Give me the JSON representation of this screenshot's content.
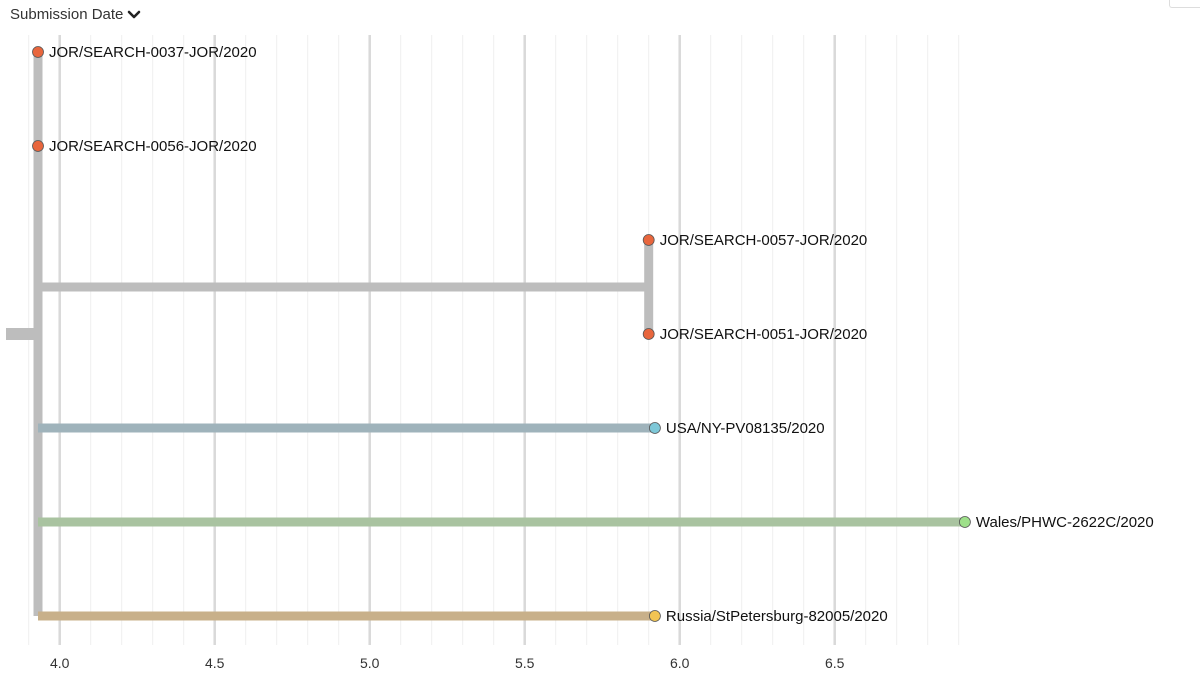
{
  "header": {
    "sort_label": "Submission Date",
    "sort_icon": "chevron-down-icon"
  },
  "chart_data": {
    "type": "phylogenetic-tree",
    "x_axis": {
      "ticks": [
        "4.0",
        "4.5",
        "5.0",
        "5.5",
        "6.0",
        "6.5"
      ],
      "range": [
        3.93,
        6.93
      ],
      "grid": true
    },
    "colors": {
      "branch": "#bdbdbd",
      "grid_major": "#d9d9d9",
      "grid_minor": "#eeeeee"
    },
    "root": {
      "x": 3.93
    },
    "internal_nodes": [
      {
        "id": "jor-clade",
        "x": 5.9,
        "children": [
          "JOR/SEARCH-0057-JOR/2020",
          "JOR/SEARCH-0051-JOR/2020"
        ]
      }
    ],
    "tips": [
      {
        "label": "JOR/SEARCH-0037-JOR/2020",
        "x": 3.93,
        "parent": "root",
        "branch_color": "#bdbdbd",
        "dot_color": "#e8663d"
      },
      {
        "label": "JOR/SEARCH-0056-JOR/2020",
        "x": 3.93,
        "parent": "root",
        "branch_color": "#bdbdbd",
        "dot_color": "#e8663d"
      },
      {
        "label": "JOR/SEARCH-0057-JOR/2020",
        "x": 5.9,
        "parent": "jor-clade",
        "branch_color": "#bdbdbd",
        "dot_color": "#e8663d"
      },
      {
        "label": "JOR/SEARCH-0051-JOR/2020",
        "x": 5.9,
        "parent": "jor-clade",
        "branch_color": "#bdbdbd",
        "dot_color": "#e8663d"
      },
      {
        "label": "USA/NY-PV08135/2020",
        "x": 5.92,
        "parent": "root",
        "branch_color": "#9fb3bb",
        "dot_color": "#7ec8d8"
      },
      {
        "label": "Wales/PHWC-2622C/2020",
        "x": 6.92,
        "parent": "root",
        "branch_color": "#a9c3a0",
        "dot_color": "#9ee08a"
      },
      {
        "label": "Russia/StPetersburg-82005/2020",
        "x": 5.92,
        "parent": "root",
        "branch_color": "#c8b08a",
        "dot_color": "#f2c453"
      }
    ]
  }
}
